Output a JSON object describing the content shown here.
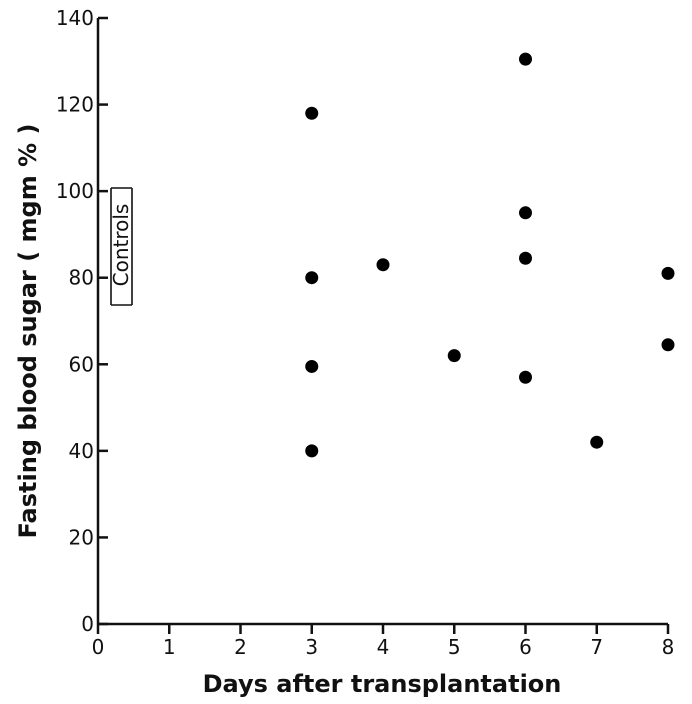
{
  "chart_data": {
    "type": "scatter",
    "title": "",
    "xlabel": "Days after transplantation",
    "ylabel": "Fasting blood sugar ( mgm % )",
    "xlim": [
      0,
      8
    ],
    "ylim": [
      0,
      140
    ],
    "x_ticks": [
      "0",
      "1",
      "2",
      "3",
      "4",
      "5",
      "6",
      "7",
      "8"
    ],
    "y_ticks": [
      "0",
      "20",
      "40",
      "60",
      "80",
      "100",
      "120",
      "140"
    ],
    "grid": false,
    "annotation": "Controls",
    "series": [
      {
        "points": [
          {
            "x": 3,
            "y": 118
          },
          {
            "x": 3,
            "y": 80
          },
          {
            "x": 3,
            "y": 59.5
          },
          {
            "x": 3,
            "y": 40
          },
          {
            "x": 4,
            "y": 83
          },
          {
            "x": 5,
            "y": 62
          },
          {
            "x": 6,
            "y": 130.5
          },
          {
            "x": 6,
            "y": 95
          },
          {
            "x": 6,
            "y": 84.5
          },
          {
            "x": 6,
            "y": 57
          },
          {
            "x": 7,
            "y": 42
          },
          {
            "x": 8,
            "y": 81
          },
          {
            "x": 8,
            "y": 64.5
          }
        ]
      }
    ]
  }
}
